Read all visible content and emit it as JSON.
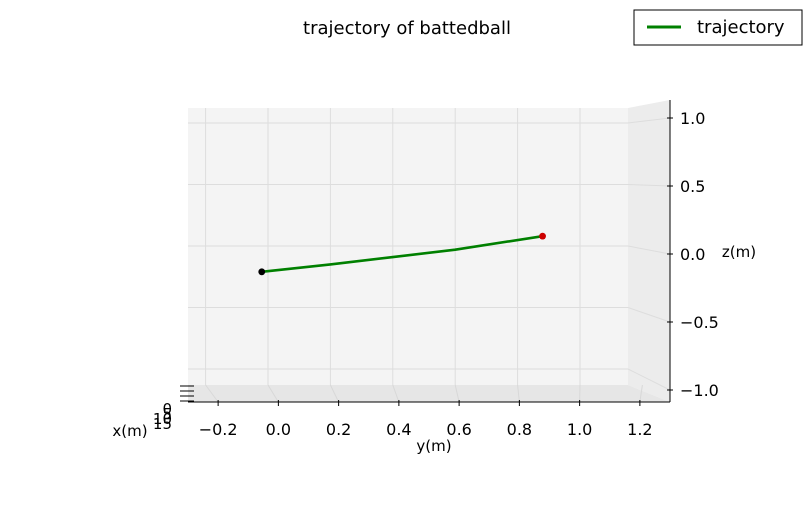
{
  "chart_data": {
    "type": "line",
    "projection": "3d",
    "title": "trajectory of battedball",
    "xlabel": "x(m)",
    "ylabel": "y(m)",
    "zlabel": "z(m)",
    "legend": {
      "entries": [
        "trajectory"
      ],
      "position": "top-right"
    },
    "grid": true,
    "ylim": [
      -0.3,
      1.3
    ],
    "zlim": [
      -1.1,
      1.1
    ],
    "y_ticks": [
      -0.2,
      0.0,
      0.2,
      0.4,
      0.6,
      0.8,
      1.0,
      1.2
    ],
    "y_tick_labels": [
      "−0.2",
      "0.0",
      "0.2",
      "0.4",
      "0.6",
      "0.8",
      "1.0",
      "1.2"
    ],
    "z_ticks": [
      1.0,
      0.5,
      0.0,
      -0.5,
      -1.0
    ],
    "z_tick_labels": [
      "1.0",
      "0.5",
      "0.0",
      "−0.5",
      "−1.0"
    ],
    "x_tick_labels": [
      "0",
      "5",
      "10",
      "15"
    ],
    "series": [
      {
        "name": "trajectory",
        "color": "#008000",
        "y": [
          -0.02,
          0.2,
          0.4,
          0.6,
          0.88
        ],
        "z": [
          -0.21,
          -0.15,
          -0.09,
          -0.03,
          0.08
        ]
      }
    ],
    "markers": [
      {
        "label": "start",
        "color": "#000000",
        "y": -0.02,
        "z": -0.21
      },
      {
        "label": "end",
        "color": "#cc0000",
        "y": 0.88,
        "z": 0.08
      }
    ]
  }
}
